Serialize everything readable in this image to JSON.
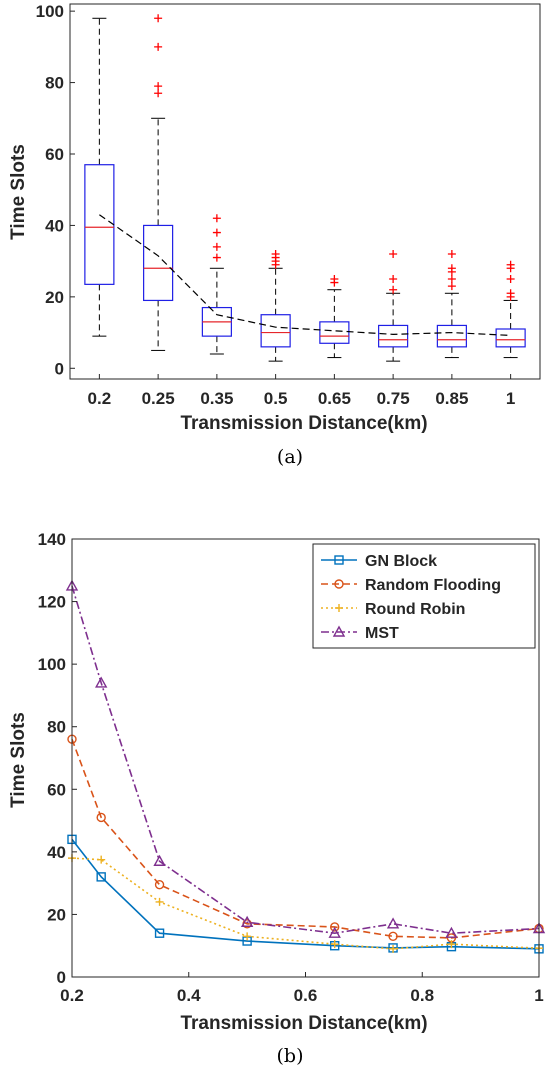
{
  "figure_a": {
    "caption": "(a)",
    "chart_data": {
      "type": "box",
      "categories": [
        "0.2",
        "0.25",
        "0.35",
        "0.5",
        "0.65",
        "0.75",
        "0.85",
        "1"
      ],
      "xlabel": "Transmission Distance(km)",
      "ylabel": "Time Slots",
      "ylim": [
        -3,
        102
      ],
      "yticks": [
        0,
        20,
        40,
        60,
        80,
        100
      ],
      "grid": false,
      "boxes": [
        {
          "category": "0.2",
          "whisker_low": 9,
          "q1": 23.5,
          "median": 39.5,
          "q3": 57,
          "whisker_high": 98,
          "outliers": []
        },
        {
          "category": "0.25",
          "whisker_low": 5,
          "q1": 19,
          "median": 28,
          "q3": 40,
          "whisker_high": 70,
          "outliers": [
            77,
            79,
            90,
            98
          ]
        },
        {
          "category": "0.35",
          "whisker_low": 4,
          "q1": 9,
          "median": 13,
          "q3": 17,
          "whisker_high": 28,
          "outliers": [
            31,
            34,
            38,
            42
          ]
        },
        {
          "category": "0.5",
          "whisker_low": 2,
          "q1": 6,
          "median": 10,
          "q3": 15,
          "whisker_high": 28,
          "outliers": [
            29,
            30,
            31,
            32
          ]
        },
        {
          "category": "0.65",
          "whisker_low": 3,
          "q1": 7,
          "median": 9,
          "q3": 13,
          "whisker_high": 22,
          "outliers": [
            24,
            25
          ]
        },
        {
          "category": "0.75",
          "whisker_low": 2,
          "q1": 6,
          "median": 8,
          "q3": 12,
          "whisker_high": 21,
          "outliers": [
            22,
            25,
            32
          ]
        },
        {
          "category": "0.85",
          "whisker_low": 3,
          "q1": 6,
          "median": 8,
          "q3": 12,
          "whisker_high": 21,
          "outliers": [
            23,
            25,
            27,
            28,
            32
          ]
        },
        {
          "category": "1",
          "whisker_low": 3,
          "q1": 6,
          "median": 8,
          "q3": 11,
          "whisker_high": 19,
          "outliers": [
            20,
            21,
            25,
            28,
            29
          ]
        }
      ],
      "mean_line": [
        43,
        31.5,
        15,
        11.5,
        10.5,
        9.5,
        10,
        9.2
      ],
      "colors": {
        "box": "#1f1fe6",
        "median": "#e6262b",
        "outlier": "#ff0000",
        "whisker": "#000000",
        "mean_line": "#000000"
      }
    }
  },
  "figure_b": {
    "caption": "(b)",
    "chart_data": {
      "type": "line",
      "x": [
        0.2,
        0.25,
        0.35,
        0.5,
        0.65,
        0.75,
        0.85,
        1
      ],
      "xlabel": "Transmission Distance(km)",
      "ylabel": "Time Slots",
      "xlim": [
        0.2,
        1
      ],
      "ylim": [
        0,
        140
      ],
      "xticks": [
        "0.2",
        "0.4",
        "0.6",
        "0.8",
        "1"
      ],
      "yticks": [
        0,
        20,
        40,
        60,
        80,
        100,
        120,
        140
      ],
      "grid": false,
      "legend_position": "top-right",
      "series": [
        {
          "name": "GN Block",
          "values": [
            44,
            32,
            14,
            11.5,
            10,
            9.3,
            9.7,
            9
          ],
          "color": "#0072bd",
          "dash": "solid",
          "marker": "square"
        },
        {
          "name": "Random Flooding",
          "values": [
            76,
            51,
            29.5,
            17,
            16,
            13,
            12.5,
            15.5
          ],
          "color": "#d95319",
          "dash": "dashed",
          "marker": "circle"
        },
        {
          "name": "Round Robin",
          "values": [
            38,
            37.5,
            24,
            13,
            10.5,
            9,
            10.5,
            9.2
          ],
          "color": "#edb120",
          "dash": "dotted",
          "marker": "plus"
        },
        {
          "name": "MST",
          "values": [
            125,
            94,
            37,
            17.5,
            14,
            17,
            14,
            15.5
          ],
          "color": "#7e2f8e",
          "dash": "dashdot",
          "marker": "triangle"
        }
      ]
    }
  }
}
